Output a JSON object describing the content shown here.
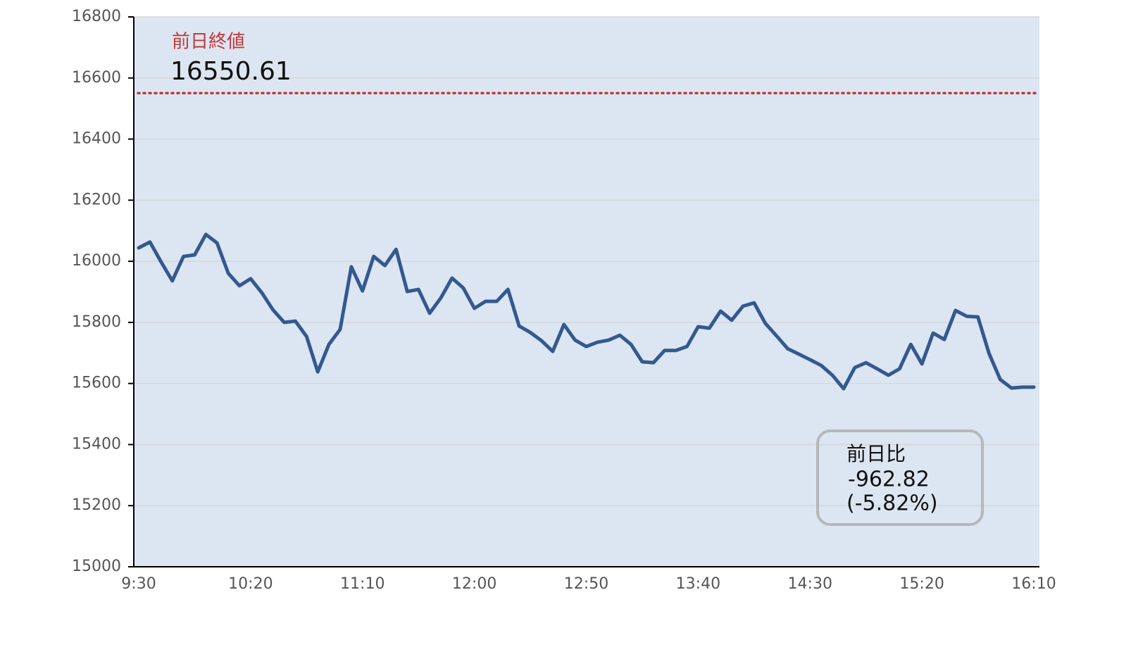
{
  "chart_data": {
    "type": "line",
    "categories": [
      "9:30",
      null,
      null,
      null,
      null,
      null,
      null,
      null,
      null,
      null,
      "10:20",
      null,
      null,
      null,
      null,
      null,
      null,
      null,
      null,
      null,
      "11:10",
      null,
      null,
      null,
      null,
      null,
      null,
      null,
      null,
      null,
      "12:00",
      null,
      null,
      null,
      null,
      null,
      null,
      null,
      null,
      null,
      "12:50",
      null,
      null,
      null,
      null,
      null,
      null,
      null,
      null,
      null,
      "13:40",
      null,
      null,
      null,
      null,
      null,
      null,
      null,
      null,
      null,
      "14:30",
      null,
      null,
      null,
      null,
      null,
      null,
      null,
      null,
      null,
      "15:20",
      null,
      null,
      null,
      null,
      null,
      null,
      null,
      null,
      null,
      "16:10"
    ],
    "values": [
      16044,
      16063,
      15998,
      15936,
      16016,
      16021,
      16088,
      16060,
      15961,
      15920,
      15943,
      15897,
      15841,
      15800,
      15804,
      15754,
      15638,
      15728,
      15777,
      15982,
      15903,
      16016,
      15986,
      16039,
      15901,
      15908,
      15830,
      15880,
      15945,
      15913,
      15846,
      15869,
      15869,
      15908,
      15788,
      15767,
      15740,
      15705,
      15793,
      15742,
      15721,
      15735,
      15742,
      15758,
      15728,
      15671,
      15668,
      15708,
      15708,
      15721,
      15786,
      15781,
      15837,
      15807,
      15853,
      15864,
      15797,
      15756,
      15714,
      15696,
      15678,
      15659,
      15627,
      15583,
      15652,
      15668,
      15648,
      15627,
      15648,
      15728,
      15664,
      15765,
      15744,
      15839,
      15820,
      15818,
      15698,
      15613,
      15585,
      15588,
      15588
    ],
    "color": "#34598f",
    "ylim": [
      15000,
      16800
    ],
    "yticks": [
      15000,
      15200,
      15400,
      15600,
      15800,
      16000,
      16200,
      16400,
      16600,
      16800
    ],
    "grid": true,
    "reference_line": {
      "label": "前日終値",
      "value": 16550.61,
      "color": "#c0393b"
    },
    "change_box": {
      "label": "前日比",
      "value": -962.82,
      "percent_label": "(-5.82%)"
    }
  }
}
